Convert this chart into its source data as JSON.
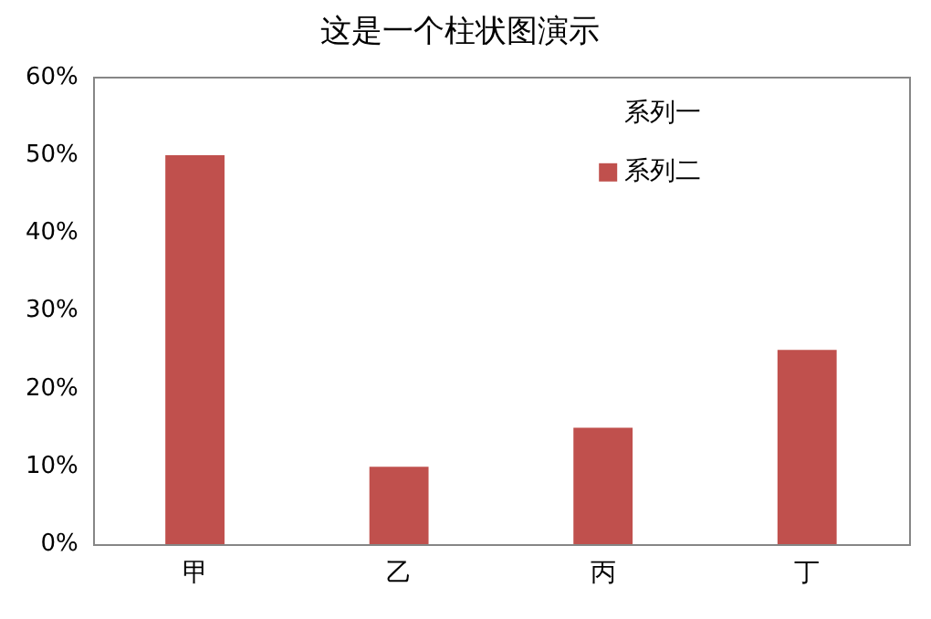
{
  "chart_data": {
    "type": "bar",
    "title": "这是一个柱状图演示",
    "categories": [
      "甲",
      "乙",
      "丙",
      "丁"
    ],
    "series": [
      {
        "name": "系列一",
        "values": [
          null,
          null,
          null,
          null
        ]
      },
      {
        "name": "系列二",
        "color": "#c0504d",
        "values": [
          50,
          10,
          15,
          25
        ]
      }
    ],
    "ylim": [
      0,
      60
    ],
    "yticks": [
      {
        "value": 0,
        "label": "0%"
      },
      {
        "value": 10,
        "label": "10%"
      },
      {
        "value": 20,
        "label": "20%"
      },
      {
        "value": 30,
        "label": "30%"
      },
      {
        "value": 40,
        "label": "40%"
      },
      {
        "value": 50,
        "label": "50%"
      },
      {
        "value": 60,
        "label": "60%"
      }
    ],
    "grid": false,
    "legend": "top right"
  }
}
